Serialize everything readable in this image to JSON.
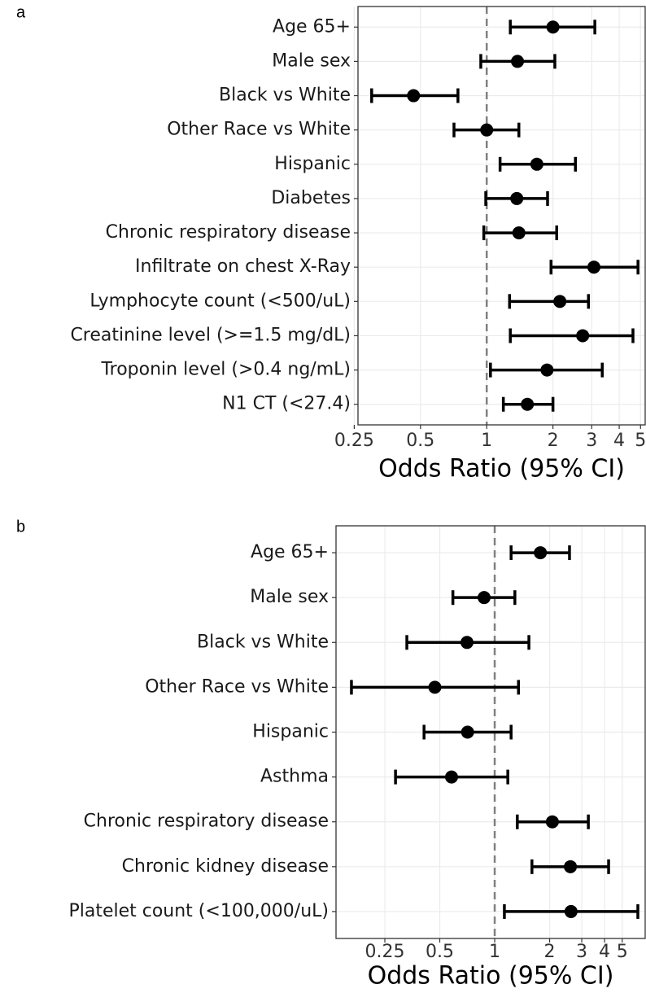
{
  "chart_data": [
    {
      "type": "forest",
      "panel_label": "a",
      "x_label": "Odds Ratio (95% CI)",
      "x_scale": "log",
      "grid": true,
      "reference_line": 1,
      "color": "#000000",
      "categories": [
        "Age 65+",
        "Male sex",
        "Black vs White",
        "Other Race vs White",
        "Hispanic",
        "Diabetes",
        "Chronic respiratory disease",
        "Infiltrate on chest X-Ray",
        "Lymphocyte count (<500/uL)",
        "Creatinine level (>=1.5 mg/dL)",
        "Troponin level (>0.4 ng/mL)",
        "N1 CT (<27.4)"
      ],
      "values": [
        2.0,
        1.38,
        0.465,
        1.0,
        1.69,
        1.37,
        1.4,
        3.07,
        2.15,
        2.73,
        1.88,
        1.53
      ],
      "lower": [
        1.28,
        0.94,
        0.3,
        0.71,
        1.15,
        0.99,
        0.97,
        1.96,
        1.27,
        1.28,
        1.04,
        1.19
      ],
      "upper": [
        3.1,
        2.04,
        0.74,
        1.4,
        2.53,
        1.89,
        2.08,
        4.87,
        2.9,
        4.62,
        3.35,
        2.0
      ],
      "xlim": [
        0.26,
        5.25
      ],
      "xticks": [
        0.25,
        0.5,
        1,
        2,
        3,
        4,
        5
      ]
    },
    {
      "type": "forest",
      "panel_label": "b",
      "x_label": "Odds Ratio (95% CI)",
      "x_scale": "log",
      "grid": true,
      "reference_line": 1,
      "color": "#000000",
      "categories": [
        "Age 65+",
        "Male sex",
        "Black vs White",
        "Other Race vs White",
        "Hispanic",
        "Asthma",
        "Chronic respiratory disease",
        "Chronic kidney disease",
        "Platelet count (<100,000/uL)"
      ],
      "values": [
        1.78,
        0.875,
        0.705,
        0.47,
        0.71,
        0.58,
        2.07,
        2.6,
        2.62
      ],
      "lower": [
        1.23,
        0.59,
        0.33,
        0.164,
        0.41,
        0.286,
        1.33,
        1.6,
        1.13
      ],
      "upper": [
        2.57,
        1.29,
        1.54,
        1.35,
        1.23,
        1.18,
        3.26,
        4.21,
        6.09
      ],
      "xlim": [
        0.135,
        6.68
      ],
      "xticks": [
        0.25,
        0.5,
        1,
        2,
        3,
        4,
        5
      ]
    }
  ]
}
